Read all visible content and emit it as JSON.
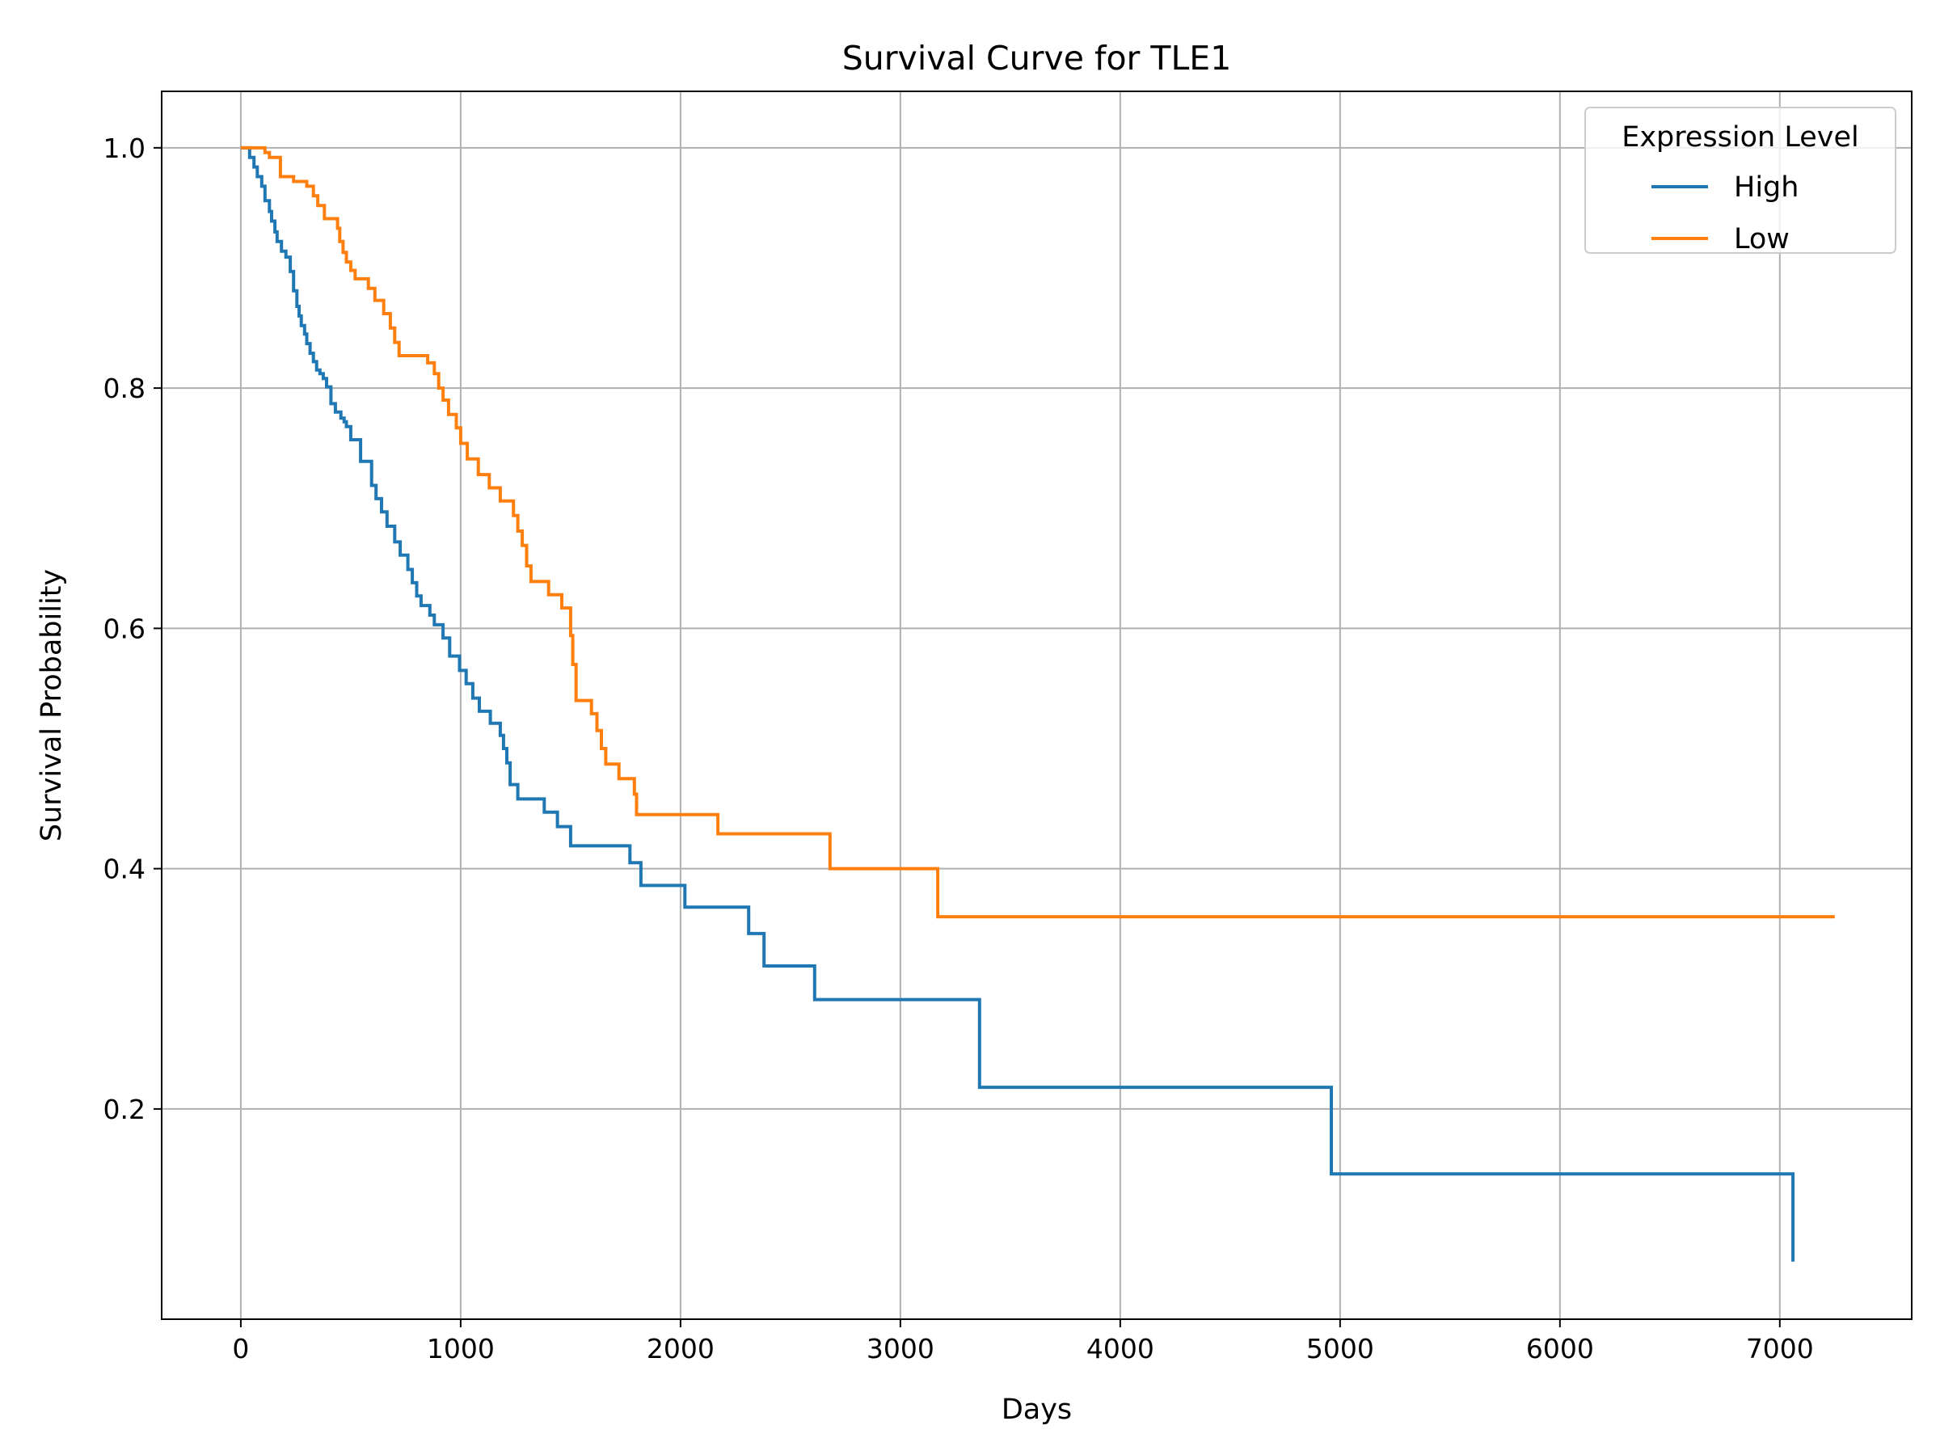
{
  "chart_data": {
    "type": "line",
    "title": "Survival Curve for TLE1",
    "xlabel": "Days",
    "ylabel": "Survival Probability",
    "xlim": [
      -360,
      7600
    ],
    "ylim": [
      0.025,
      1.047
    ],
    "xticks": [
      0,
      1000,
      2000,
      3000,
      4000,
      5000,
      6000,
      7000
    ],
    "yticks": [
      0.2,
      0.4,
      0.6,
      0.8,
      1.0
    ],
    "xtick_labels": [
      "0",
      "1000",
      "2000",
      "3000",
      "4000",
      "5000",
      "6000",
      "7000"
    ],
    "ytick_labels": [
      "0.2",
      "0.4",
      "0.6",
      "0.8",
      "1.0"
    ],
    "grid": true,
    "step": "post",
    "legend": {
      "title": "Expression Level",
      "position": "top-right"
    },
    "series": [
      {
        "name": "High",
        "color": "#1f77b4",
        "x": [
          0,
          40,
          60,
          75,
          95,
          110,
          130,
          140,
          155,
          165,
          185,
          205,
          225,
          240,
          255,
          265,
          275,
          290,
          300,
          315,
          330,
          345,
          360,
          375,
          390,
          410,
          430,
          455,
          470,
          480,
          500,
          545,
          595,
          615,
          640,
          665,
          700,
          725,
          760,
          780,
          800,
          820,
          860,
          880,
          920,
          950,
          995,
          1025,
          1055,
          1085,
          1135,
          1180,
          1195,
          1210,
          1225,
          1260,
          1380,
          1440,
          1500,
          1770,
          1820,
          2020,
          2310,
          2380,
          2610,
          3360,
          4960,
          7060
        ],
        "y": [
          1.0,
          0.992,
          0.984,
          0.976,
          0.968,
          0.956,
          0.947,
          0.939,
          0.93,
          0.922,
          0.914,
          0.909,
          0.897,
          0.881,
          0.868,
          0.86,
          0.852,
          0.845,
          0.837,
          0.829,
          0.822,
          0.815,
          0.812,
          0.808,
          0.801,
          0.787,
          0.78,
          0.775,
          0.772,
          0.768,
          0.757,
          0.739,
          0.719,
          0.708,
          0.697,
          0.685,
          0.672,
          0.661,
          0.649,
          0.638,
          0.627,
          0.619,
          0.611,
          0.603,
          0.592,
          0.577,
          0.565,
          0.554,
          0.542,
          0.531,
          0.521,
          0.511,
          0.5,
          0.488,
          0.47,
          0.458,
          0.447,
          0.435,
          0.419,
          0.405,
          0.386,
          0.368,
          0.346,
          0.319,
          0.291,
          0.218,
          0.146,
          0.073
        ]
      },
      {
        "name": "Low",
        "color": "#ff7f0e",
        "x": [
          0,
          110,
          130,
          180,
          240,
          300,
          330,
          350,
          380,
          440,
          450,
          465,
          480,
          500,
          520,
          580,
          610,
          650,
          680,
          700,
          720,
          850,
          880,
          900,
          920,
          945,
          980,
          1000,
          1030,
          1080,
          1130,
          1180,
          1240,
          1260,
          1280,
          1300,
          1320,
          1400,
          1460,
          1500,
          1510,
          1525,
          1595,
          1620,
          1640,
          1660,
          1720,
          1790,
          1800,
          2170,
          2680,
          3170,
          7250
        ],
        "y": [
          1.0,
          0.996,
          0.992,
          0.976,
          0.972,
          0.968,
          0.96,
          0.952,
          0.941,
          0.933,
          0.922,
          0.913,
          0.905,
          0.898,
          0.891,
          0.883,
          0.873,
          0.862,
          0.85,
          0.838,
          0.827,
          0.821,
          0.812,
          0.8,
          0.79,
          0.778,
          0.767,
          0.754,
          0.741,
          0.728,
          0.717,
          0.706,
          0.694,
          0.681,
          0.669,
          0.652,
          0.639,
          0.628,
          0.617,
          0.594,
          0.57,
          0.54,
          0.529,
          0.515,
          0.5,
          0.487,
          0.475,
          0.462,
          0.445,
          0.429,
          0.4,
          0.36,
          0.36
        ]
      }
    ]
  }
}
